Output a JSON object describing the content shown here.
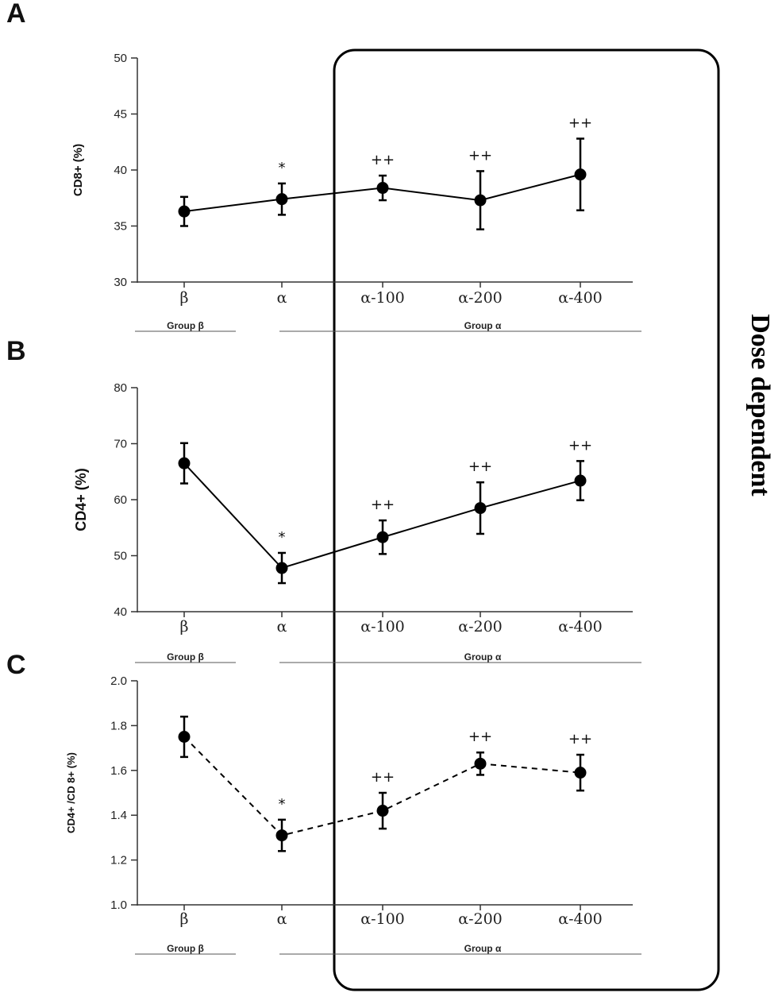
{
  "side_label": "Dose dependent",
  "chart_data": [
    {
      "type": "line",
      "panel": "A",
      "ylabel": "CD8+ (%)",
      "categories": [
        "β",
        "α",
        "α-100",
        "α-200",
        "α-400"
      ],
      "values": [
        36.3,
        37.4,
        38.4,
        37.3,
        39.6
      ],
      "errors": [
        1.3,
        1.4,
        1.1,
        2.6,
        3.2
      ],
      "significance": [
        "",
        "*",
        "++",
        "++",
        "++"
      ],
      "ylim": [
        30,
        50
      ],
      "yticks": [
        "30",
        "35",
        "40",
        "45",
        "50"
      ],
      "line_style": "solid",
      "groups": [
        {
          "label": "Group β",
          "categories": [
            "β"
          ]
        },
        {
          "label": "Group α",
          "categories": [
            "α",
            "α-100",
            "α-200",
            "α-400"
          ]
        }
      ]
    },
    {
      "type": "line",
      "panel": "B",
      "ylabel": "CD4+ (%)",
      "categories": [
        "β",
        "α",
        "α-100",
        "α-200",
        "α-400"
      ],
      "values": [
        66.5,
        47.8,
        53.3,
        58.5,
        63.4
      ],
      "errors": [
        3.6,
        2.7,
        3.0,
        4.6,
        3.5
      ],
      "significance": [
        "",
        "*",
        "++",
        "++",
        "++"
      ],
      "ylim": [
        40,
        80
      ],
      "yticks": [
        "40",
        "50",
        "60",
        "70",
        "80"
      ],
      "line_style": "solid",
      "groups": [
        {
          "label": "Group β",
          "categories": [
            "β"
          ]
        },
        {
          "label": "Group α",
          "categories": [
            "α",
            "α-100",
            "α-200",
            "α-400"
          ]
        }
      ]
    },
    {
      "type": "line",
      "panel": "C",
      "ylabel": "CD4+ /CD 8+ (%)",
      "categories": [
        "β",
        "α",
        "α-100",
        "α-200",
        "α-400"
      ],
      "values": [
        1.75,
        1.31,
        1.42,
        1.63,
        1.59
      ],
      "errors": [
        0.09,
        0.07,
        0.08,
        0.05,
        0.08
      ],
      "significance": [
        "",
        "*",
        "++",
        "++",
        "++"
      ],
      "ylim": [
        1.0,
        2.0
      ],
      "yticks": [
        "1.0",
        "1.2",
        "1.4",
        "1.6",
        "1.8",
        "2.0"
      ],
      "line_style": "dashed",
      "groups": [
        {
          "label": "Group β",
          "categories": [
            "β"
          ]
        },
        {
          "label": "Group α",
          "categories": [
            "α",
            "α-100",
            "α-200",
            "α-400"
          ]
        }
      ]
    }
  ]
}
